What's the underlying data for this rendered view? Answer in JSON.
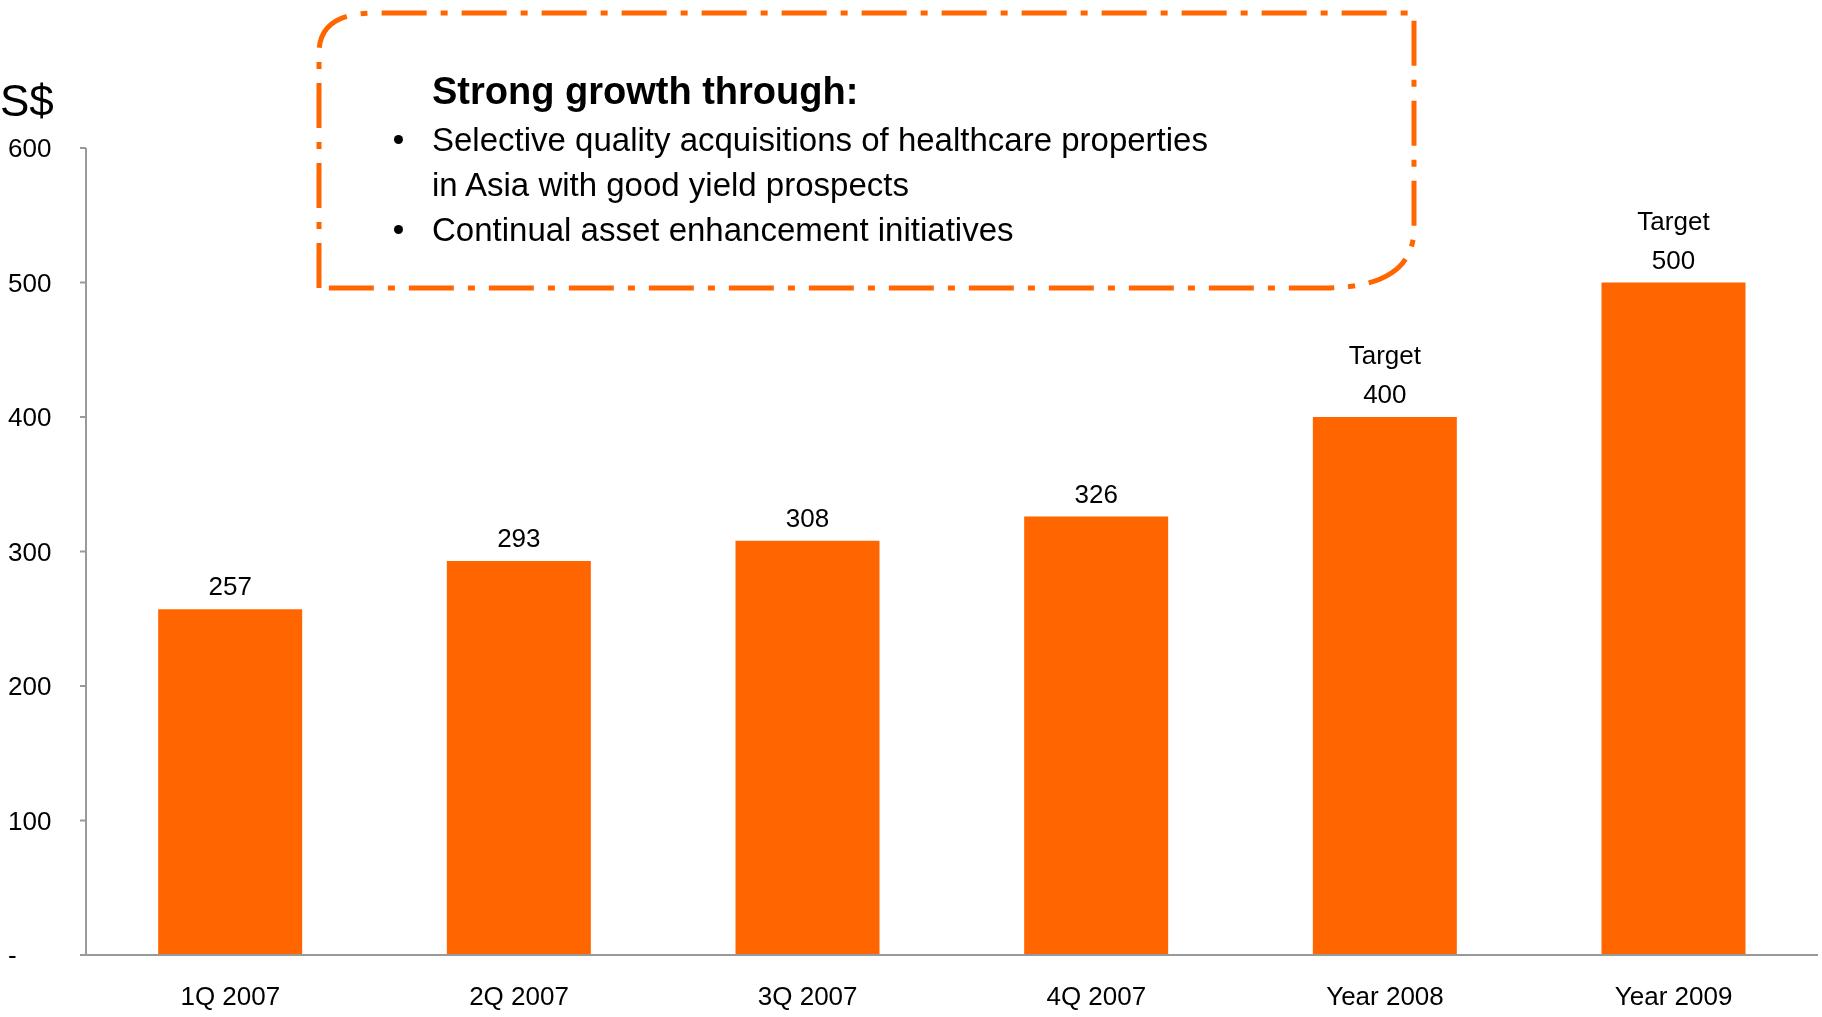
{
  "chart_data": {
    "type": "bar",
    "ylabel": "S$",
    "categories": [
      "1Q 2007",
      "2Q 2007",
      "3Q 2007",
      "4Q 2007",
      "Year 2008",
      "Year 2009"
    ],
    "values": [
      257,
      293,
      308,
      326,
      400,
      500
    ],
    "value_labels": [
      "257",
      "293",
      "308",
      "326",
      "Target\n400",
      "Target\n500"
    ],
    "color": "#ff6600",
    "ylim": [
      0,
      600
    ],
    "yticks": [
      {
        "value": 0,
        "label": "-"
      },
      100,
      200,
      300,
      400,
      500,
      600
    ],
    "grid": false,
    "annotations": [
      "Strong growth through:",
      "Selective quality acquisitions of healthcare properties in Asia with good yield prospects",
      "Continual asset enhancement initiatives"
    ]
  }
}
